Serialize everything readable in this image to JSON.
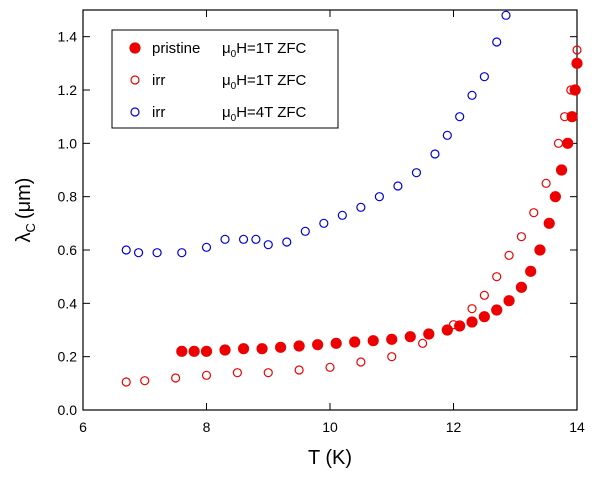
{
  "chart_data": {
    "type": "scatter",
    "xlabel": "T (K)",
    "ylabel": {
      "symbol": "λ",
      "subscript": "C",
      "unit": "(μm)"
    },
    "xlim": [
      6,
      14
    ],
    "xticks": [
      6,
      8,
      10,
      12,
      14
    ],
    "ylim": [
      0,
      1.5
    ],
    "yticks": [
      {
        "value": 0,
        "label": "0.0"
      },
      {
        "value": 0.2,
        "label": "0.2"
      },
      {
        "value": 0.4,
        "label": "0.4"
      },
      {
        "value": 0.6,
        "label": "0.6"
      },
      {
        "value": 0.8,
        "label": "0.8"
      },
      {
        "value": 1.0,
        "label": "1.0"
      },
      {
        "value": 1.2,
        "label": "1.2"
      },
      {
        "value": 1.4,
        "label": "1.4"
      }
    ],
    "legend": "upper left",
    "series": [
      {
        "name": "pristine",
        "field": {
          "prefix": "μ",
          "sub": "0",
          "rest": "H=1T  ZFC"
        },
        "color": "#ee0000",
        "filled": true,
        "x": [
          7.6,
          7.8,
          8.0,
          8.3,
          8.6,
          8.9,
          9.2,
          9.5,
          9.8,
          10.1,
          10.4,
          10.7,
          11.0,
          11.3,
          11.6,
          11.9,
          12.1,
          12.3,
          12.5,
          12.7,
          12.9,
          13.1,
          13.25,
          13.4,
          13.55,
          13.65,
          13.75,
          13.85,
          13.92,
          13.97,
          14.0
        ],
        "values": [
          0.22,
          0.22,
          0.22,
          0.225,
          0.23,
          0.23,
          0.235,
          0.24,
          0.245,
          0.25,
          0.255,
          0.26,
          0.265,
          0.275,
          0.285,
          0.3,
          0.315,
          0.33,
          0.35,
          0.375,
          0.41,
          0.46,
          0.52,
          0.6,
          0.7,
          0.8,
          0.9,
          1.0,
          1.1,
          1.2,
          1.3
        ]
      },
      {
        "name": "irr",
        "field": {
          "prefix": "μ",
          "sub": "0",
          "rest": "H=1T  ZFC"
        },
        "color": "#ee0000",
        "filled": false,
        "x": [
          6.7,
          7.0,
          7.5,
          8.0,
          8.5,
          9.0,
          9.5,
          10.0,
          10.5,
          11.0,
          11.5,
          12.0,
          12.3,
          12.5,
          12.7,
          12.9,
          13.1,
          13.3,
          13.5,
          13.7,
          13.8,
          13.9,
          14.0
        ],
        "values": [
          0.105,
          0.11,
          0.12,
          0.13,
          0.14,
          0.14,
          0.15,
          0.16,
          0.18,
          0.2,
          0.25,
          0.32,
          0.38,
          0.43,
          0.5,
          0.58,
          0.65,
          0.74,
          0.85,
          1.0,
          1.1,
          1.2,
          1.35
        ]
      },
      {
        "name": "irr",
        "field": {
          "prefix": "μ",
          "sub": "0",
          "rest": "H=4T  ZFC"
        },
        "color": "#0000dd",
        "filled": false,
        "x": [
          6.7,
          6.9,
          7.2,
          7.6,
          8.0,
          8.3,
          8.6,
          8.8,
          9.0,
          9.3,
          9.6,
          9.9,
          10.2,
          10.5,
          10.8,
          11.1,
          11.4,
          11.7,
          11.9,
          12.1,
          12.3,
          12.5,
          12.7,
          12.85
        ],
        "values": [
          0.6,
          0.59,
          0.59,
          0.59,
          0.61,
          0.64,
          0.64,
          0.64,
          0.62,
          0.63,
          0.67,
          0.7,
          0.73,
          0.76,
          0.8,
          0.84,
          0.89,
          0.96,
          1.03,
          1.1,
          1.18,
          1.25,
          1.38,
          1.48
        ]
      }
    ]
  }
}
